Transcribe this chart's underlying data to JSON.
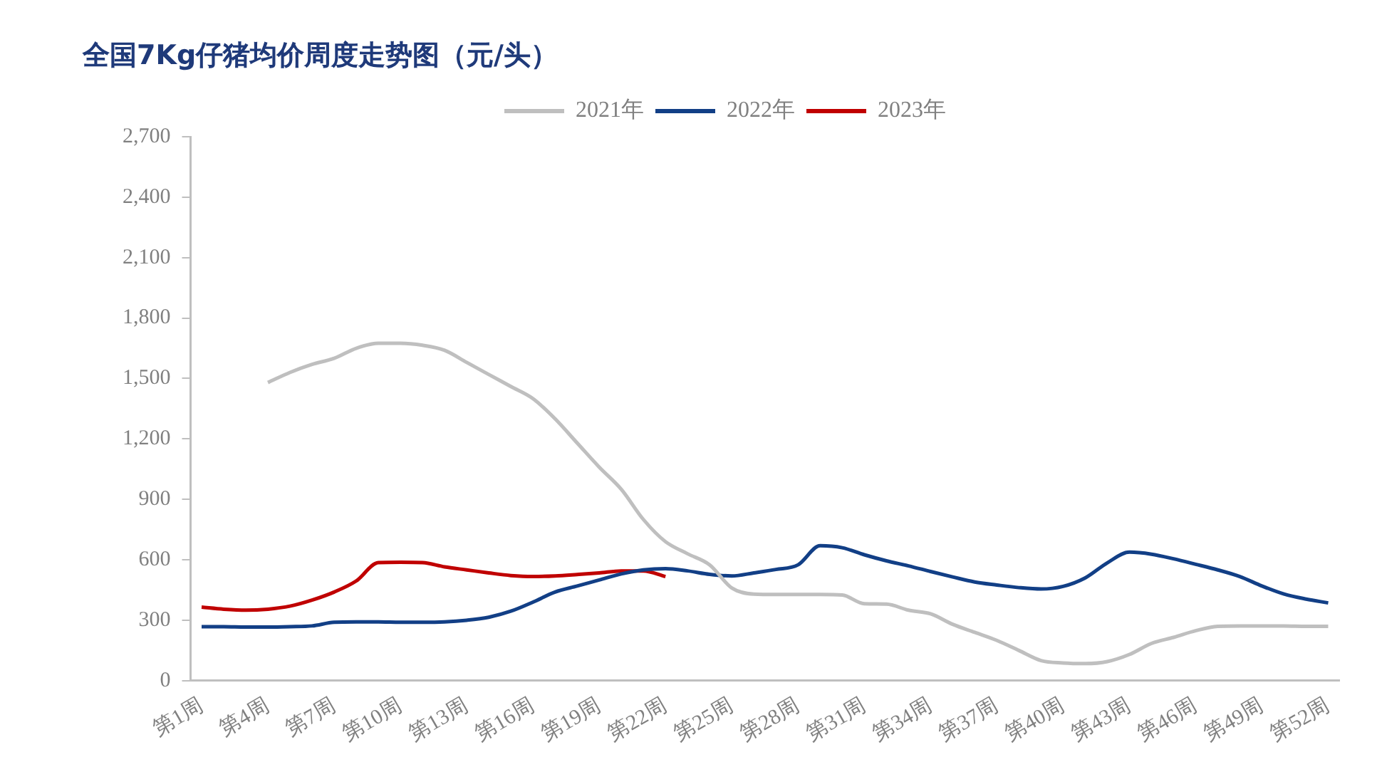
{
  "chart_data": {
    "type": "line",
    "title": "全国7Kg仔猪均价周度走势图（元/头）",
    "categories": [
      "第1周",
      null,
      null,
      "第4周",
      null,
      null,
      "第7周",
      null,
      null,
      "第10周",
      null,
      null,
      "第13周",
      null,
      null,
      "第16周",
      null,
      null,
      "第19周",
      null,
      null,
      "第22周",
      null,
      null,
      "第25周",
      null,
      null,
      "第28周",
      null,
      null,
      "第31周",
      null,
      null,
      "第34周",
      null,
      null,
      "第37周",
      null,
      null,
      "第40周",
      null,
      null,
      "第43周",
      null,
      null,
      "第46周",
      null,
      null,
      "第49周",
      null,
      null,
      "第52周"
    ],
    "series": [
      {
        "name": "2021年",
        "color": "#bfbfbf",
        "values": [
          null,
          null,
          null,
          1480,
          1530,
          1570,
          1600,
          1650,
          1675,
          1675,
          1665,
          1640,
          1580,
          1520,
          1460,
          1400,
          1300,
          1180,
          1060,
          950,
          800,
          690,
          630,
          575,
          460,
          430,
          428,
          428,
          428,
          425,
          382,
          380,
          350,
          332,
          280,
          240,
          200,
          150,
          100,
          88,
          85,
          95,
          130,
          185,
          215,
          248,
          270,
          272,
          272,
          272,
          270,
          270
        ]
      },
      {
        "name": "2022年",
        "color": "#123f86",
        "values": [
          268,
          268,
          266,
          266,
          268,
          272,
          290,
          292,
          292,
          290,
          290,
          292,
          300,
          315,
          345,
          390,
          440,
          470,
          500,
          530,
          550,
          556,
          545,
          528,
          520,
          535,
          552,
          575,
          670,
          660,
          625,
          595,
          570,
          542,
          515,
          490,
          475,
          462,
          455,
          468,
          510,
          585,
          638,
          628,
          605,
          578,
          550,
          517,
          470,
          430,
          405,
          386
        ]
      },
      {
        "name": "2023年",
        "color": "#c00000",
        "values": [
          365,
          355,
          350,
          355,
          370,
          400,
          440,
          495,
          586,
          588,
          586,
          565,
          550,
          535,
          522,
          517,
          520,
          527,
          535,
          545,
          545,
          517,
          null,
          null,
          null,
          null,
          null,
          null,
          null,
          null,
          null,
          null,
          null,
          null,
          null,
          null,
          null,
          null,
          null,
          null,
          null,
          null,
          null,
          null,
          null,
          null,
          null,
          null,
          null,
          null,
          null,
          null
        ]
      }
    ],
    "ylim": [
      0,
      2700
    ],
    "yticks": [
      0,
      {
        "value": 300,
        "label": "300"
      },
      {
        "value": 600,
        "label": "600"
      },
      {
        "value": 900,
        "label": "900"
      },
      {
        "value": 1200,
        "label": "1,200"
      },
      {
        "value": 1500,
        "label": "1,500"
      },
      {
        "value": 1800,
        "label": "1,800"
      },
      {
        "value": 2100,
        "label": "2,100"
      },
      {
        "value": 2400,
        "label": "2,400"
      },
      {
        "value": 2700,
        "label": "2,700"
      }
    ],
    "grid": false,
    "legend": "top",
    "marker": "none",
    "line_style": "solid"
  }
}
